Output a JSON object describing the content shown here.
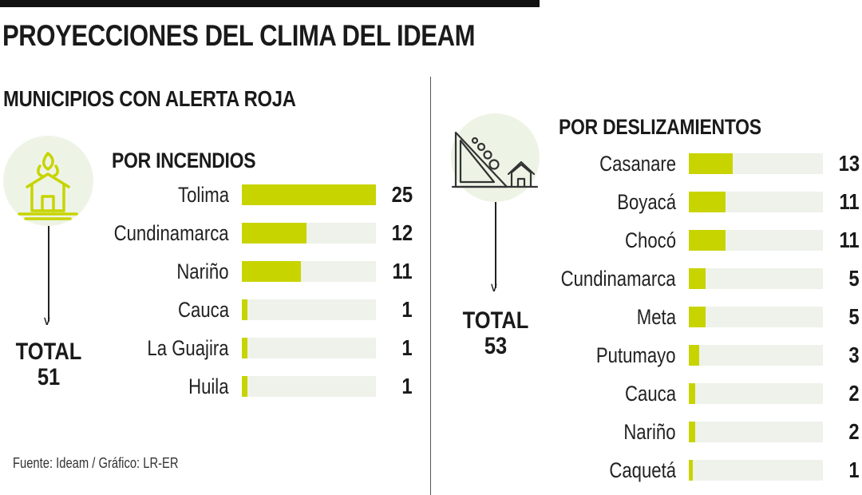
{
  "title": "PROYECCIONES DEL CLIMA DEL IDEAM",
  "subtitle": "MUNICIPIOS CON ALERTA ROJA",
  "source": "Fuente: Ideam / Gráfico: LR-ER",
  "colors": {
    "bar_fill": "#c8d400",
    "bar_track": "#eef2ea",
    "icon_bg": "#edf4e6"
  },
  "panels": [
    {
      "icon": "fire-house-icon",
      "total_label": "TOTAL",
      "total_value": "51"
    },
    {
      "icon": "landslide-icon",
      "total_label": "TOTAL",
      "total_value": "53"
    }
  ],
  "chart_data": [
    {
      "type": "bar",
      "orientation": "horizontal",
      "title": "POR INCENDIOS",
      "categories": [
        "Tolima",
        "Cundinamarca",
        "Nariño",
        "Cauca",
        "La Guajira",
        "Huila"
      ],
      "values": [
        25,
        12,
        11,
        1,
        1,
        1
      ],
      "xlim": [
        0,
        25
      ]
    },
    {
      "type": "bar",
      "orientation": "horizontal",
      "title": "POR DESLIZAMIENTOS",
      "categories": [
        "Casanare",
        "Boyacá",
        "Chocó",
        "Cundinamarca",
        "Meta",
        "Putumayo",
        "Cauca",
        "Nariño",
        "Caquetá"
      ],
      "values": [
        13,
        11,
        11,
        5,
        5,
        3,
        2,
        2,
        1
      ],
      "xlim": [
        0,
        40
      ]
    }
  ]
}
